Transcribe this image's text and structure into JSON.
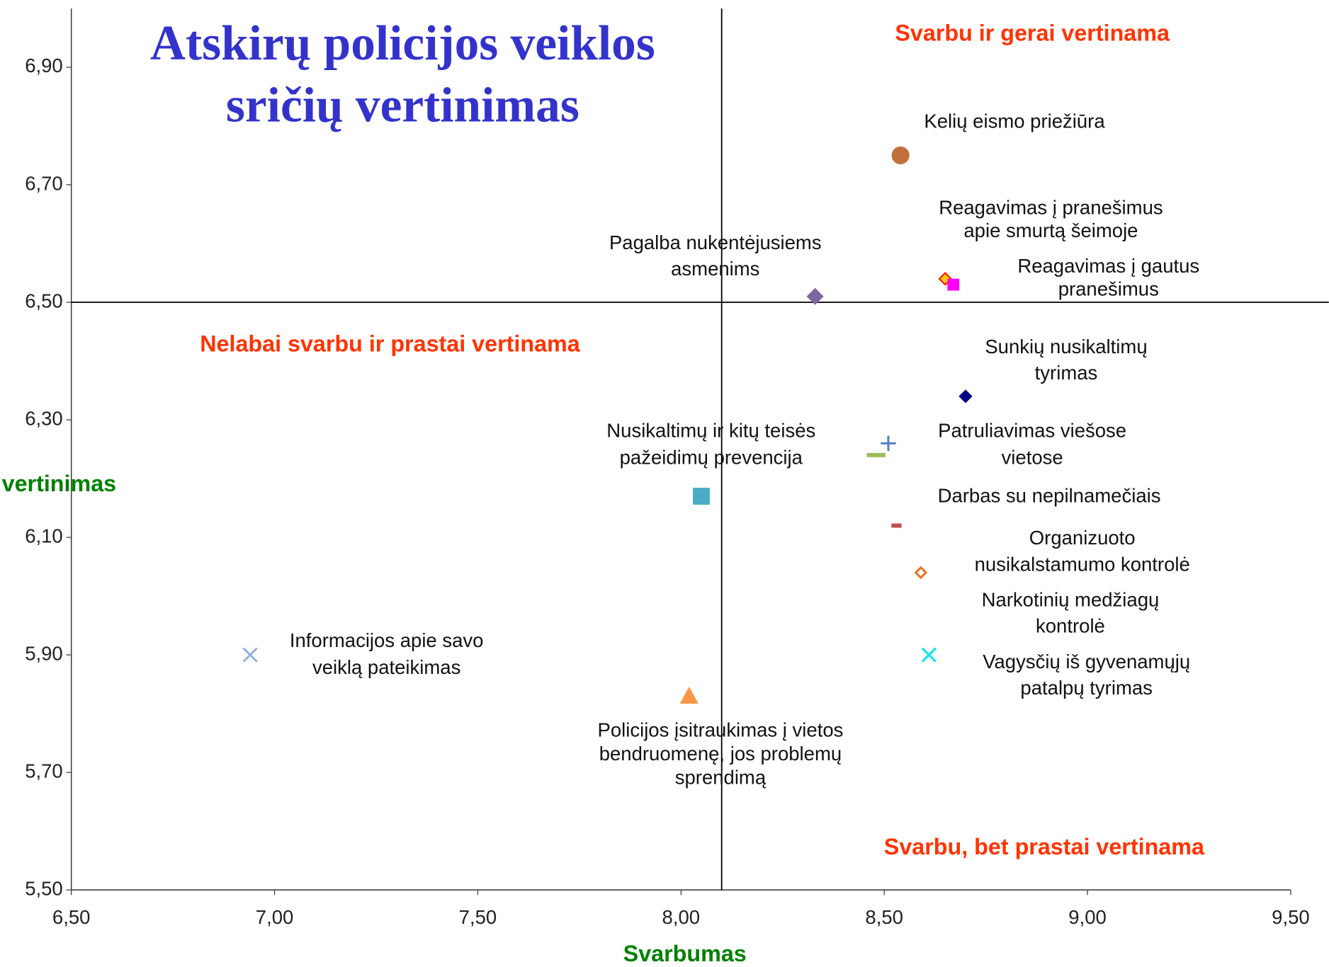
{
  "chart_data": {
    "type": "scatter",
    "title": [
      "Atskirų policijos veiklos",
      "sričių vertinimas"
    ],
    "xlabel": "Svarbumas",
    "ylabel": "vertinimas",
    "annotations": [
      "Svarbu ir gerai vertinama",
      "Nelabai svarbu ir prastai vertinama",
      "Svarbu, bet prastai vertinama"
    ],
    "xlim": [
      6.5,
      9.5
    ],
    "ylim": [
      5.5,
      7.0
    ],
    "xticks": [
      {
        "value": 6.5,
        "label": "6,50"
      },
      {
        "value": 7.0,
        "label": "7,00"
      },
      {
        "value": 7.5,
        "label": "7,50"
      },
      {
        "value": 8.0,
        "label": "8,00"
      },
      {
        "value": 8.5,
        "label": "8,50"
      },
      {
        "value": 9.0,
        "label": "9,00"
      },
      {
        "value": 9.5,
        "label": "9,50"
      }
    ],
    "yticks": [
      {
        "value": 5.5,
        "label": "5,50"
      },
      {
        "value": 5.7,
        "label": "5,70"
      },
      {
        "value": 5.9,
        "label": "5,90"
      },
      {
        "value": 6.1,
        "label": "6,10"
      },
      {
        "value": 6.3,
        "label": "6,30"
      },
      {
        "value": 6.5,
        "label": "6,50"
      },
      {
        "value": 6.7,
        "label": "6,70"
      },
      {
        "value": 6.9,
        "label": "6,90"
      }
    ],
    "xref": 8.1,
    "yref": 6.5,
    "series": [
      {
        "name": [
          "Kelių eismo priežiūra"
        ],
        "color": "#c0703a",
        "marker": "circle",
        "x": [
          8.54
        ],
        "values": [
          6.75
        ]
      },
      {
        "name": [
          "Reagavimas į pranešimus",
          "apie smurtą šeimoje"
        ],
        "color": "#ffcc00",
        "marker": "diamond-small",
        "x": [
          8.65
        ],
        "values": [
          6.54
        ]
      },
      {
        "name": [
          "Reagavimas į gautus",
          "pranešimus"
        ],
        "color": "#ff00ff",
        "marker": "square-small",
        "x": [
          8.67
        ],
        "values": [
          6.53
        ]
      },
      {
        "name": [
          "Pagalba nukentėjusiems",
          "asmenims"
        ],
        "color": "#8064a2",
        "marker": "diamond",
        "x": [
          8.33
        ],
        "values": [
          6.51
        ]
      },
      {
        "name": [
          "Sunkių nusikaltimų",
          "tyrimas"
        ],
        "color": "#000080",
        "marker": "diamond-small",
        "x": [
          8.7
        ],
        "values": [
          6.34
        ]
      },
      {
        "name": [
          "Patruliavimas viešose",
          "vietose"
        ],
        "color": "#4f81bd",
        "marker": "plus",
        "x": [
          8.51
        ],
        "values": [
          6.26
        ]
      },
      {
        "name": [
          "Nusikaltimų ir kitų teisės",
          "pažeidimų prevencija"
        ],
        "color": "#4bacc6",
        "marker": "square",
        "x": [
          8.05
        ],
        "values": [
          6.17
        ]
      },
      {
        "name": [
          "Narkotinių medžiagų",
          "kontrolė"
        ],
        "color": "#9bbb59",
        "marker": "dash",
        "x": [
          8.48
        ],
        "values": [
          6.24
        ]
      },
      {
        "name": [
          "Darbas su nepilnamečiais"
        ],
        "color": "#c0504d",
        "marker": "dash-small",
        "x": [
          8.53
        ],
        "values": [
          6.12
        ]
      },
      {
        "name": [
          "Organizuoto",
          "nusikalstamumo kontrolė"
        ],
        "color": "#f07020",
        "marker": "diamond-open",
        "x": [
          8.59
        ],
        "values": [
          6.04
        ]
      },
      {
        "name": [
          "Vagysčių iš gyvenamųjų",
          "patalpų tyrimas"
        ],
        "color": "#00e5ee",
        "marker": "x",
        "x": [
          8.61
        ],
        "values": [
          5.9
        ]
      },
      {
        "name": [
          "Informacijos apie savo",
          "veiklą pateikimas"
        ],
        "color": "#95b3d7",
        "marker": "x",
        "x": [
          6.94
        ],
        "values": [
          5.9
        ]
      },
      {
        "name": [
          "Policijos įsitraukimas į vietos",
          "bendruomenę, jos problemų",
          "sprendimą"
        ],
        "color": "#f79646",
        "marker": "triangle",
        "x": [
          8.02
        ],
        "values": [
          5.83
        ]
      }
    ]
  }
}
